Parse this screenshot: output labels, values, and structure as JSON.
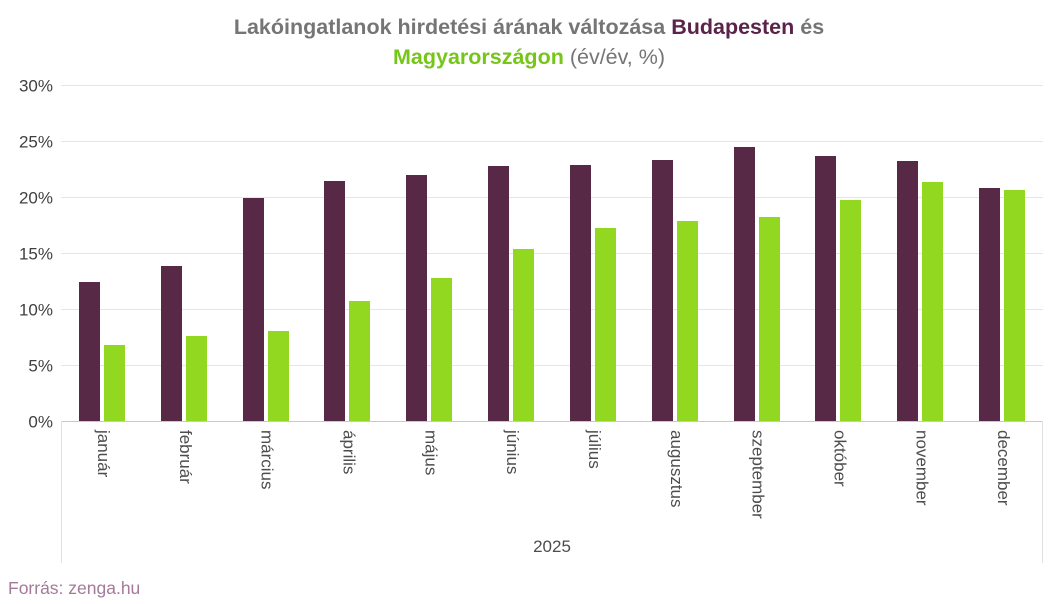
{
  "title": {
    "line1_prefix": "Lakóingatlanok hirdetési árának változása",
    "line1_highlight": "Budapesten",
    "line1_suffix": "és",
    "line2_highlight": "Magyarországon",
    "line2_suffix": "(év/év, %)"
  },
  "footer": {
    "source": "Forrás: zenga.hu"
  },
  "colors": {
    "budapest_bars": "#572946",
    "hungary_bars": "#93d820",
    "title_gray": "#757575",
    "title_budapest": "#5b2349",
    "title_hungary": "#76c61a",
    "gridline": "#e6e6e6",
    "axis_baseline": "#c9c9c9",
    "axis_text": "#404040",
    "source_text": "#a47a99"
  },
  "chart_data": {
    "type": "bar",
    "title": "Lakóingatlanok hirdetési árának változása Budapesten és Magyarországon (év/év, %)",
    "categories": [
      "január",
      "február",
      "március",
      "április",
      "május",
      "június",
      "július",
      "augusztus",
      "szeptember",
      "október",
      "november",
      "december"
    ],
    "series": [
      {
        "name": "Budapesten",
        "color": "#572946",
        "values": [
          12.4,
          13.8,
          19.9,
          21.4,
          22.0,
          22.8,
          22.9,
          23.3,
          24.5,
          23.7,
          23.2,
          20.8
        ]
      },
      {
        "name": "Magyarországon",
        "color": "#93d820",
        "values": [
          6.8,
          7.6,
          8.0,
          10.7,
          12.8,
          15.4,
          17.2,
          17.9,
          18.2,
          19.7,
          21.3,
          20.6
        ]
      }
    ],
    "xlabel": "2025",
    "ylabel": "",
    "ylim": [
      0,
      30
    ],
    "ytick_step": 5,
    "ytick_suffix": "%",
    "grid": true,
    "legend": "none"
  }
}
